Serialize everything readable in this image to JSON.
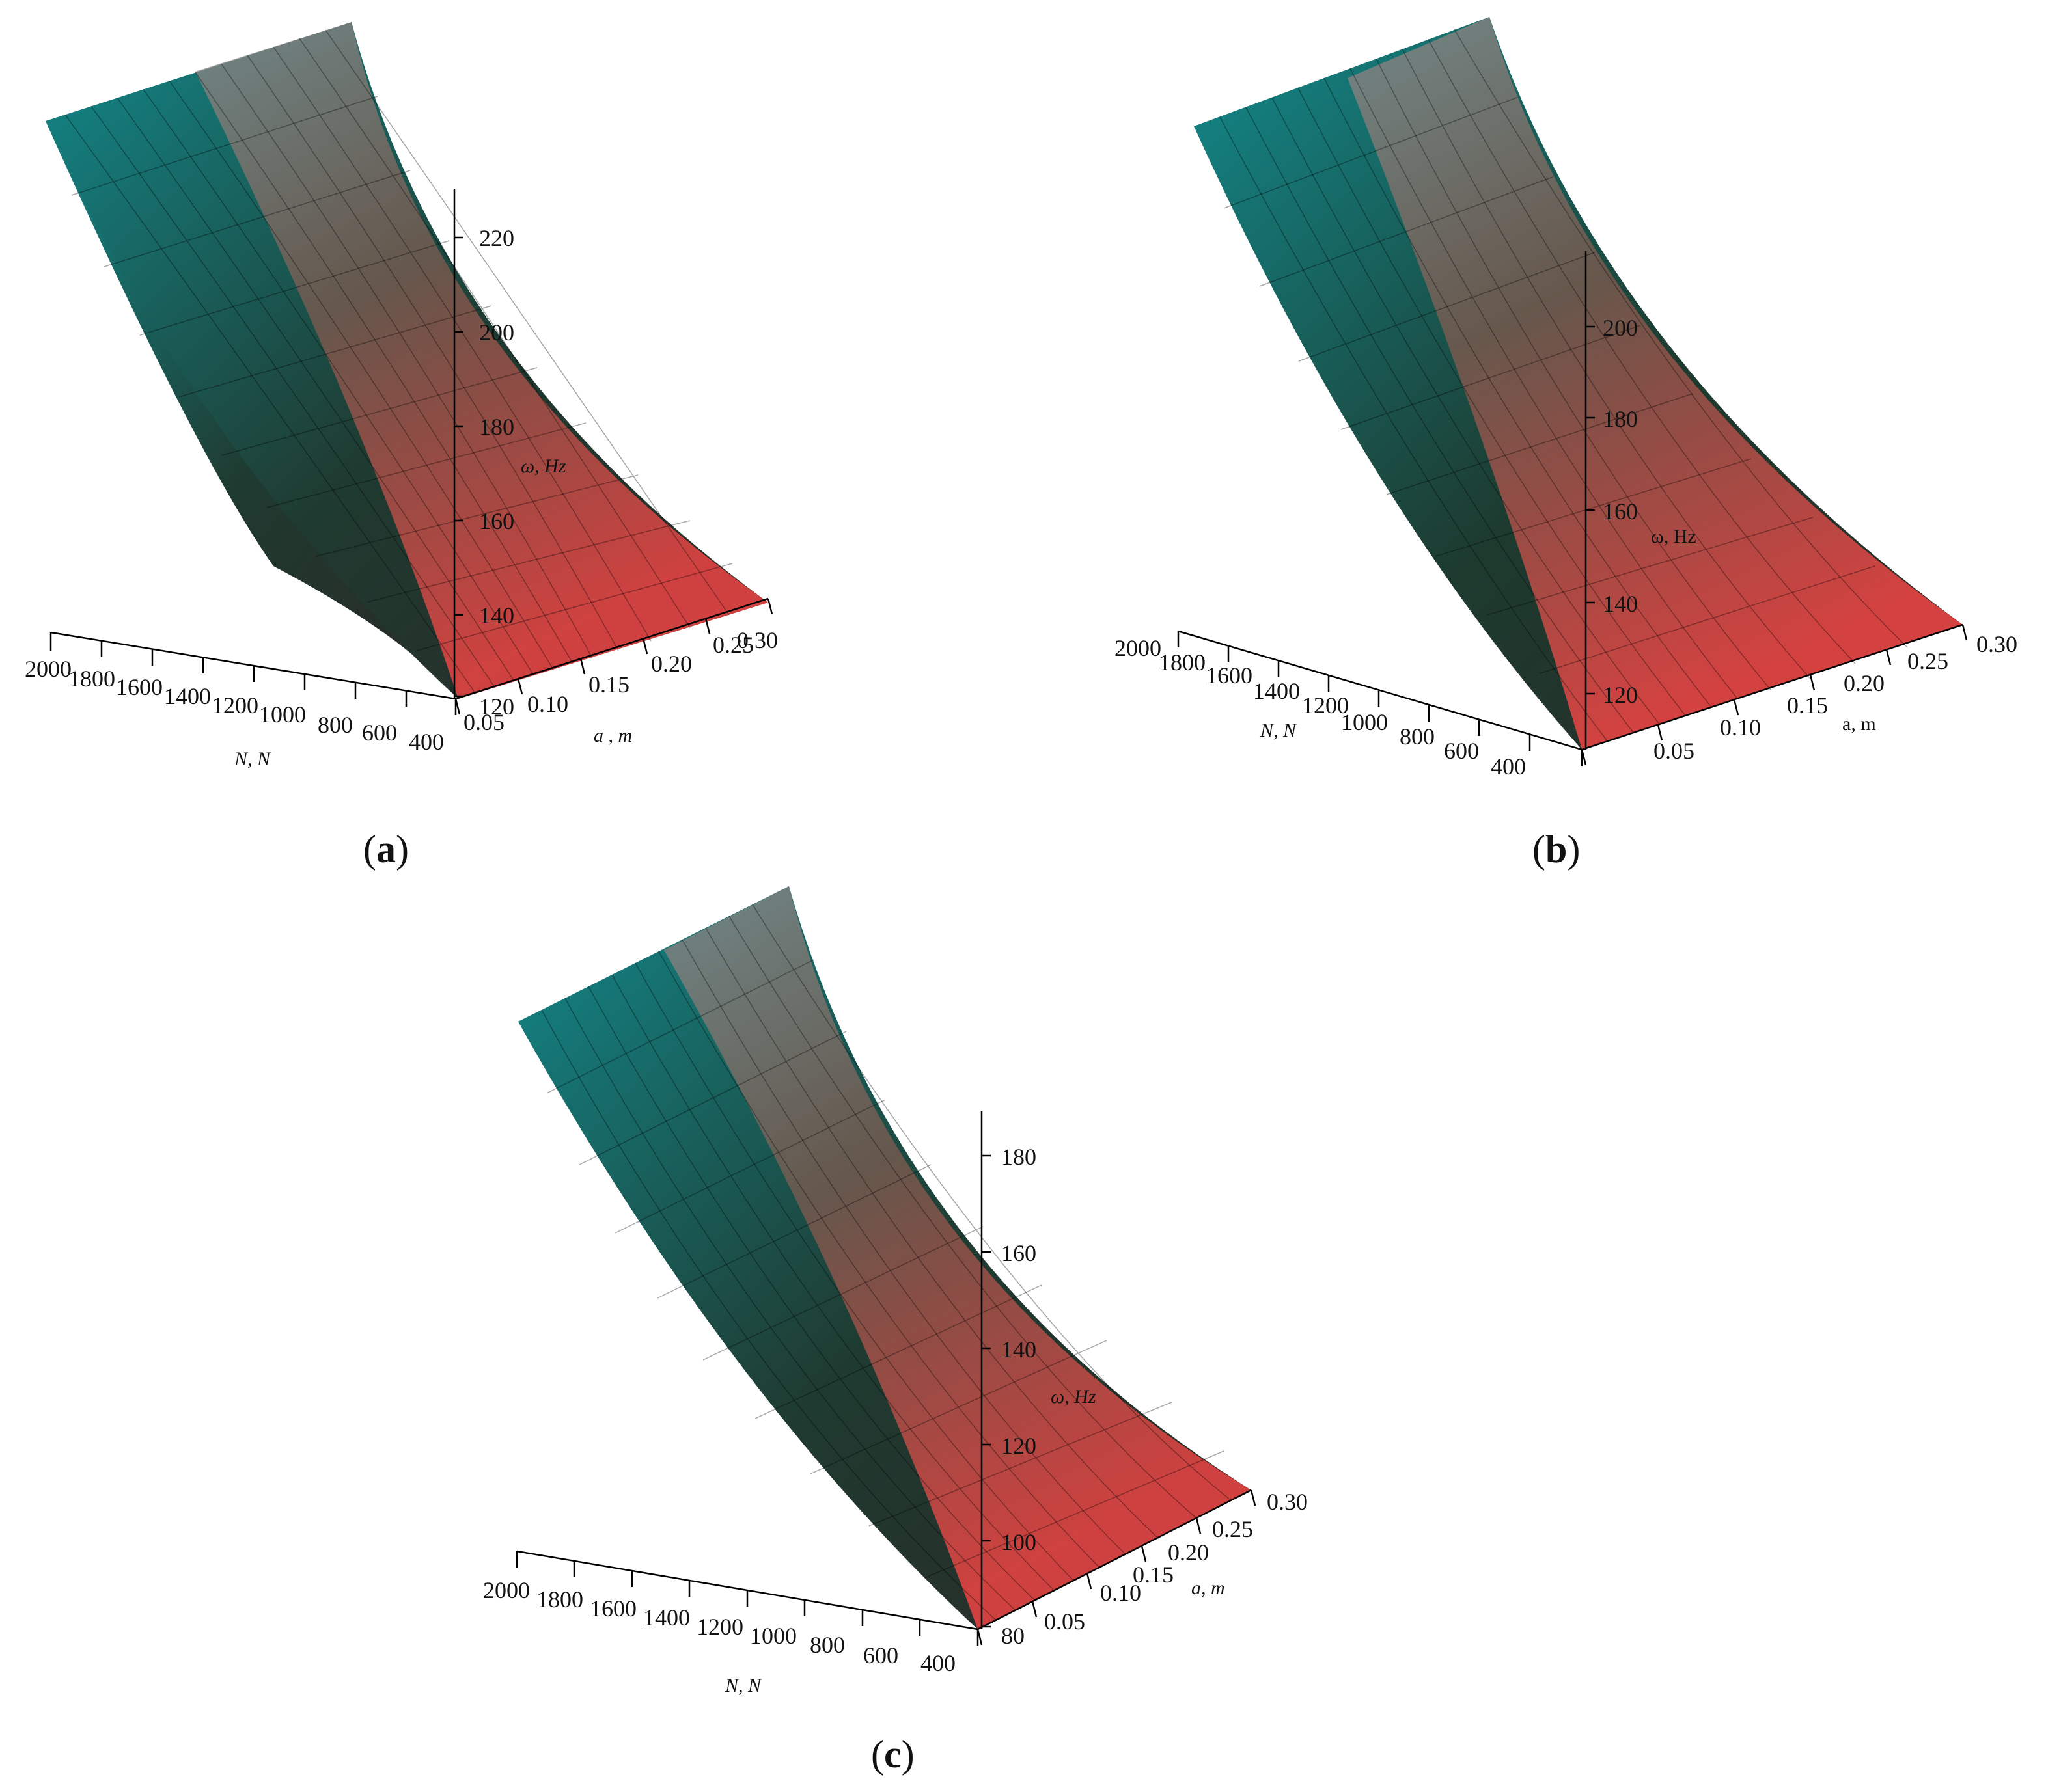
{
  "figure": {
    "panels": [
      {
        "caption": {
          "open": "(",
          "letter": "a",
          "close": ")"
        },
        "z_label": "ω, Hz",
        "x_label": "N, N",
        "y_label": "a , m",
        "italic_labels": true,
        "z_ticks": [
          "220",
          "200",
          "180",
          "160",
          "140",
          "120"
        ],
        "n_ticks": [
          "2000",
          "1800",
          "1600",
          "1400",
          "1200",
          "1000",
          "800",
          "600",
          "400"
        ],
        "a_ticks": [
          "0.05",
          "0.10",
          "0.15",
          "0.20",
          "0.25",
          "0.30"
        ]
      },
      {
        "caption": {
          "open": "(",
          "letter": "b",
          "close": ")"
        },
        "z_label": "ω, Hz",
        "x_label": "N, N",
        "y_label": "a, m",
        "italic_labels": false,
        "z_ticks": [
          "200",
          "180",
          "160",
          "140",
          "120"
        ],
        "n_ticks": [
          "2000",
          "1800",
          "1600",
          "1400",
          "1200",
          "1000",
          "800",
          "600",
          "400"
        ],
        "a_ticks": [
          "0.05",
          "0.10",
          "0.15",
          "0.20",
          "0.25",
          "0.30"
        ]
      },
      {
        "caption": {
          "open": "(",
          "letter": "c",
          "close": ")"
        },
        "z_label": "ω, Hz",
        "x_label": "N, N",
        "y_label": "a, m",
        "italic_labels": true,
        "z_ticks": [
          "180",
          "160",
          "140",
          "120",
          "100",
          "80"
        ],
        "n_ticks": [
          "2000",
          "1800",
          "1600",
          "1400",
          "1200",
          "1000",
          "800",
          "600",
          "400"
        ],
        "a_ticks": [
          "0.05",
          "0.10",
          "0.15",
          "0.20",
          "0.25",
          "0.30"
        ]
      }
    ]
  },
  "chart_data": [
    {
      "type": "surface",
      "x": {
        "values": [
          400,
          600,
          800,
          1000,
          1200,
          1400,
          1600,
          1800,
          2000
        ],
        "range": [
          400,
          2000
        ]
      },
      "y": {
        "values": [
          0.05,
          0.1,
          0.15,
          0.2,
          0.25,
          0.3
        ],
        "range": [
          0.05,
          0.3
        ]
      },
      "z": {
        "range": [
          120,
          220
        ],
        "ticks": [
          120,
          140,
          160,
          180,
          200,
          220
        ]
      },
      "colormap": {
        "low": "#ff4a4a",
        "mid": "#1f3d30",
        "high": "#8a8a8a",
        "left_edge": "#138a8a"
      },
      "grid": true
    },
    {
      "type": "surface",
      "x": {
        "values": [
          400,
          600,
          800,
          1000,
          1200,
          1400,
          1600,
          1800,
          2000
        ],
        "range": [
          400,
          2000
        ]
      },
      "y": {
        "values": [
          0.05,
          0.1,
          0.15,
          0.2,
          0.25,
          0.3
        ],
        "range": [
          0.05,
          0.3
        ]
      },
      "z": {
        "range": [
          115,
          200
        ],
        "ticks": [
          120,
          140,
          160,
          180,
          200
        ]
      },
      "colormap": {
        "low": "#ff4a4a",
        "mid": "#1f3d30",
        "high": "#8a8a8a",
        "left_edge": "#138a8a"
      },
      "grid": true
    },
    {
      "type": "surface",
      "x": {
        "values": [
          400,
          600,
          800,
          1000,
          1200,
          1400,
          1600,
          1800,
          2000
        ],
        "range": [
          400,
          2000
        ]
      },
      "y": {
        "values": [
          0.05,
          0.1,
          0.15,
          0.2,
          0.25,
          0.3
        ],
        "range": [
          0.05,
          0.3
        ]
      },
      "z": {
        "range": [
          80,
          180
        ],
        "ticks": [
          80,
          100,
          120,
          140,
          160,
          180
        ]
      },
      "colormap": {
        "low": "#ff4a4a",
        "mid": "#1f3d30",
        "high": "#8a8a8a",
        "left_edge": "#138a8a"
      },
      "grid": true
    }
  ]
}
